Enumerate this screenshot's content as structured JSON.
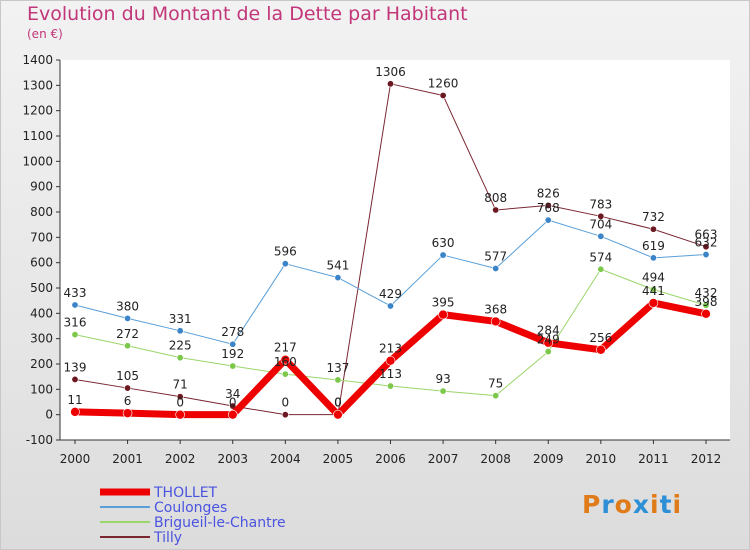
{
  "header": {
    "title": "Evolution du Montant de la Dette par Habitant",
    "subtitle": "(en €)"
  },
  "brand": {
    "name": "Proxiti",
    "letters": [
      "P",
      "r",
      "o",
      "x",
      "i",
      "t",
      "i"
    ],
    "colors": [
      "#e07b1a",
      "#2d8fd6",
      "#e07b1a",
      "#2d8fd6",
      "#e07b1a",
      "#2d8fd6",
      "#e07b1a"
    ]
  },
  "chart_data": {
    "type": "line",
    "title": "Evolution du Montant de la Dette par Habitant",
    "subtitle": "(en €)",
    "x": [
      "2000",
      "2001",
      "2002",
      "2003",
      "2004",
      "2005",
      "2006",
      "2007",
      "2008",
      "2009",
      "2010",
      "2011",
      "2012"
    ],
    "ylim": [
      -100,
      1400
    ],
    "yticks": [
      -100,
      0,
      100,
      200,
      300,
      400,
      500,
      600,
      700,
      800,
      900,
      1000,
      1100,
      1200,
      1300,
      1400
    ],
    "grid": false,
    "legend": "bottom-left",
    "series": [
      {
        "name": "Tilly",
        "color": "#7a2630",
        "width": 1,
        "marker": "#6b1820",
        "values": [
          139,
          105,
          71,
          34,
          0,
          0,
          1306,
          1260,
          808,
          826,
          783,
          732,
          663
        ]
      },
      {
        "name": "Coulonges",
        "color": "#5a9fd8",
        "width": 1,
        "marker": "#3b84c8",
        "values": [
          433,
          380,
          331,
          278,
          596,
          541,
          429,
          630,
          577,
          768,
          704,
          619,
          632
        ]
      },
      {
        "name": "Brigueil-le-Chantre",
        "color": "#9ad66a",
        "width": 1,
        "marker": "#7cc84a",
        "values": [
          316,
          272,
          225,
          192,
          160,
          137,
          113,
          93,
          75,
          249,
          574,
          494,
          432
        ]
      },
      {
        "name": "THOLLET",
        "color": "#ee0000",
        "width": 7,
        "marker": "#ee0000",
        "values": [
          11,
          6,
          0,
          0,
          217,
          0,
          213,
          395,
          368,
          284,
          256,
          441,
          398
        ]
      }
    ],
    "legend_order": [
      "THOLLET",
      "Coulonges",
      "Brigueil-le-Chantre",
      "Tilly"
    ]
  }
}
